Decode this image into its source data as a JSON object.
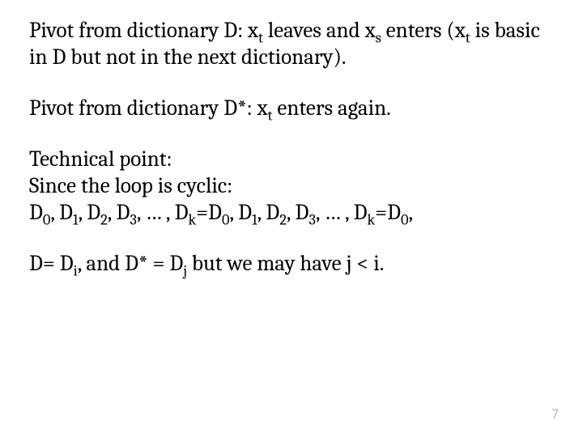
{
  "slide": {
    "text_color": "#000000",
    "background_color": "#ffffff",
    "font_family_body": "Cambria, Georgia, 'Times New Roman', serif",
    "font_size_pt": 20,
    "page_number": "7",
    "page_number_color": "#b8b8b8",
    "paragraphs": {
      "p1_a": "Pivot from dictionary D: x",
      "p1_sub_t": "t",
      "p1_b": " leaves and x",
      "p1_sub_s": "s",
      "p1_c": " enters (x",
      "p1_sub_t2": "t",
      "p1_d": " is basic in D but not in the next dictionary).",
      "p2_a": "Pivot from dictionary D*: x",
      "p2_sub_t": "t",
      "p2_b": " enters again.",
      "p3_line1": "Technical point:",
      "p3_line2": "Since the loop is cyclic:",
      "p3_seq_a": "D",
      "p3_sub0": "0",
      "p3_seq_b": ", D",
      "p3_sub1": "1",
      "p3_seq_c": ", D",
      "p3_sub2": "2",
      "p3_seq_d": ", D",
      "p3_sub3": "3",
      "p3_seq_e": ", … , D",
      "p3_subk": "k",
      "p3_seq_f": "=D",
      "p3_sub0b": "0",
      "p3_seq_g": ", D",
      "p3_sub1b": "1",
      "p3_seq_h": ", D",
      "p3_sub2b": "2",
      "p3_seq_i": ", D",
      "p3_sub3b": "3",
      "p3_seq_j": ", … , D",
      "p3_subkb": "k",
      "p3_seq_k": "=D",
      "p3_sub0c": "0",
      "p3_seq_l": ",",
      "p4_a": "D= D",
      "p4_sub_i": "i",
      "p4_b": ", and D* = D",
      "p4_sub_j": "j",
      "p4_c": " but we may have j < i."
    }
  }
}
